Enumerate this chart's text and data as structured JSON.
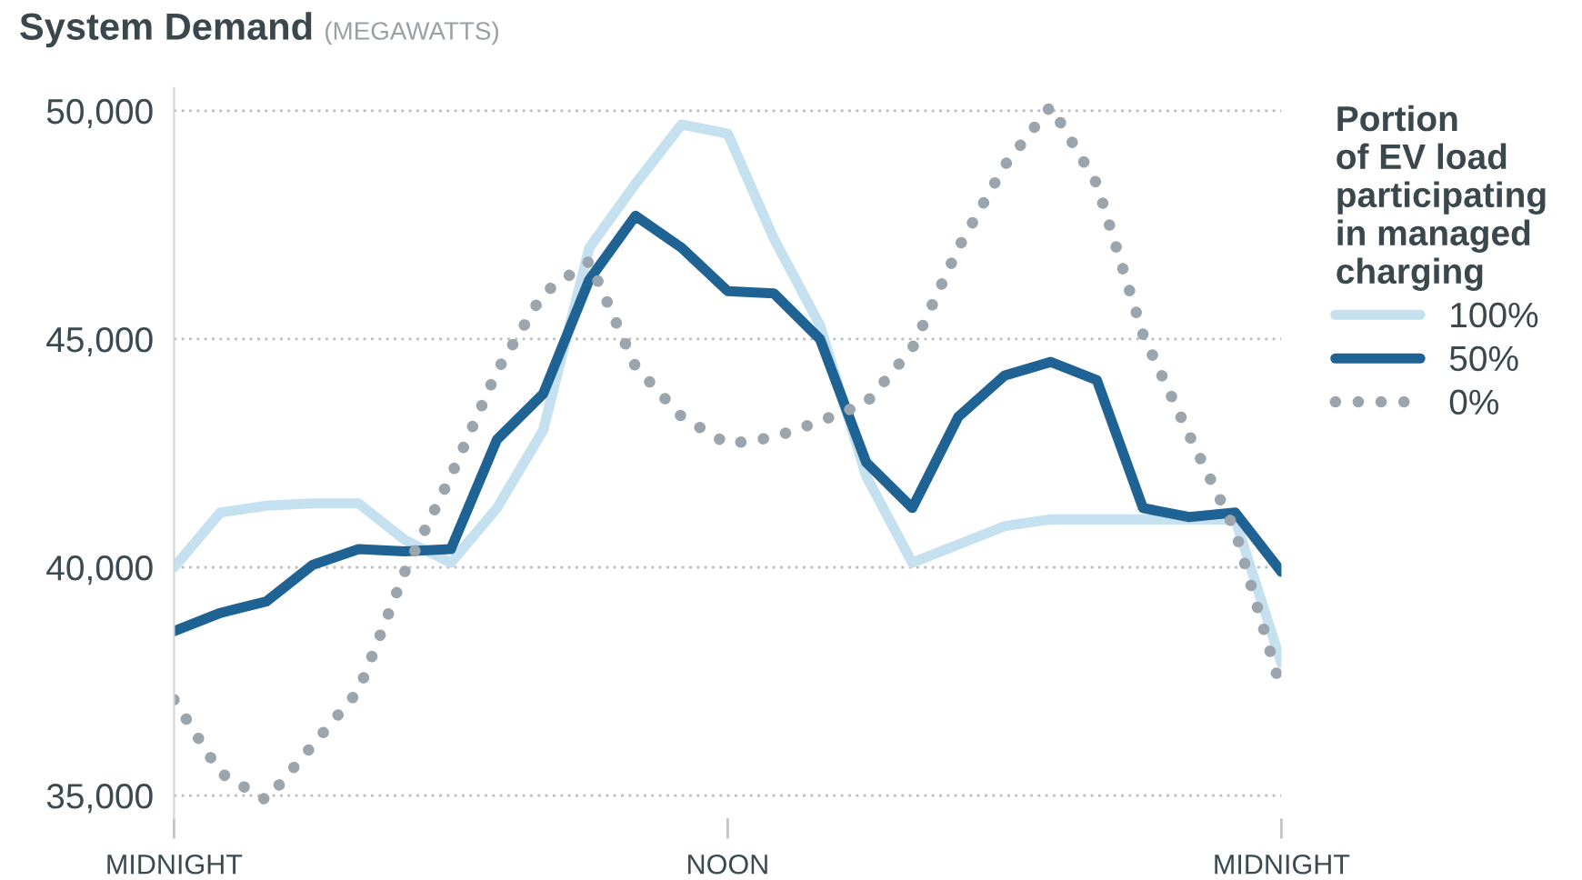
{
  "chart_data": {
    "type": "line",
    "title": "System Demand",
    "subtitle": "(MEGAWATTS)",
    "legend_title": "Portion\nof EV load\nparticipating\nin managed\ncharging",
    "legend": "right",
    "grid": "y",
    "marker": "none",
    "categories": [
      "MIDNIGHT",
      null,
      null,
      null,
      null,
      null,
      null,
      null,
      null,
      null,
      null,
      null,
      "NOON",
      null,
      null,
      null,
      null,
      null,
      null,
      null,
      null,
      null,
      null,
      null,
      "MIDNIGHT"
    ],
    "ylim": [
      34500,
      50500
    ],
    "yticks": [
      {
        "value": 35000,
        "label": "35,000"
      },
      {
        "value": 40000,
        "label": "40,000"
      },
      {
        "value": 45000,
        "label": "45,000"
      },
      {
        "value": 50000,
        "label": "50,000"
      }
    ],
    "series": [
      {
        "name": "100%",
        "color": "#c5e1f0",
        "line_style": "solid",
        "values": [
          40000,
          41200,
          41350,
          41400,
          41400,
          40600,
          40100,
          41300,
          43000,
          47000,
          48400,
          49700,
          49500,
          47200,
          45300,
          42000,
          40100,
          40500,
          40900,
          41050,
          41050,
          41050,
          41050,
          41050,
          37900
        ]
      },
      {
        "name": "50%",
        "color": "#1f6394",
        "line_style": "solid",
        "values": [
          38600,
          39000,
          39250,
          40050,
          40400,
          40350,
          40400,
          42800,
          43800,
          46300,
          47700,
          47000,
          46050,
          46000,
          45000,
          42300,
          41300,
          43300,
          44200,
          44500,
          44100,
          41300,
          41100,
          41200,
          39900
        ]
      },
      {
        "name": "0%",
        "color": "#9aa5ad",
        "line_style": "dotted",
        "values": [
          37100,
          35500,
          34900,
          36100,
          37300,
          39900,
          42000,
          44300,
          46000,
          46700,
          44400,
          43300,
          42700,
          42850,
          43200,
          43600,
          44800,
          47000,
          48800,
          50100,
          48400,
          45100,
          42900,
          40800,
          37300
        ]
      }
    ]
  }
}
